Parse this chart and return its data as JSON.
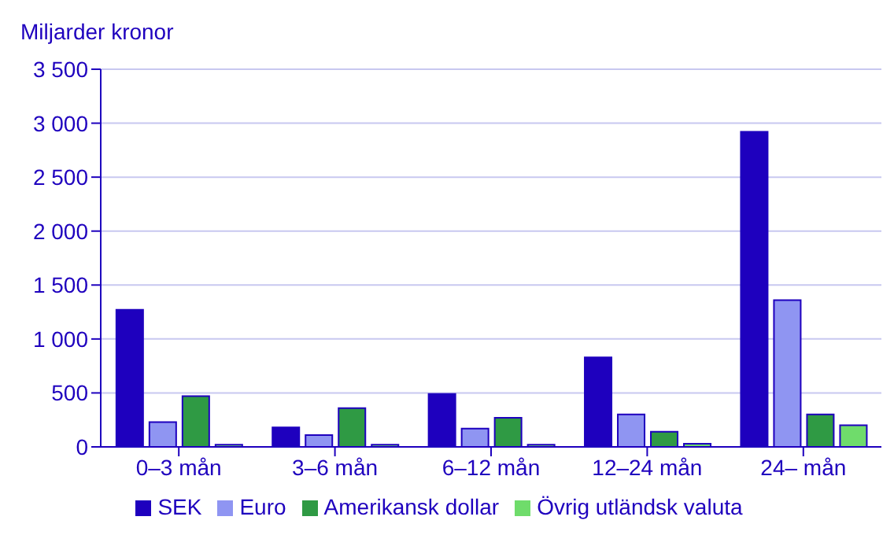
{
  "chart_data": {
    "type": "bar",
    "ylabel": "Miljarder kronor",
    "categories": [
      "0–3 mån",
      "3–6 mån",
      "6–12 mån",
      "12–24 mån",
      "24– mån"
    ],
    "series": [
      {
        "name": "SEK",
        "color": "#1e00be",
        "values": [
          1270,
          180,
          490,
          830,
          2920
        ]
      },
      {
        "name": "Euro",
        "color": "#8f95f2",
        "values": [
          230,
          110,
          170,
          300,
          1360
        ]
      },
      {
        "name": "Amerikansk dollar",
        "color": "#2f9a44",
        "values": [
          470,
          360,
          270,
          140,
          300
        ]
      },
      {
        "name": "Övrig utländsk valuta",
        "color": "#6fdc6b",
        "values": [
          20,
          20,
          20,
          30,
          200
        ]
      }
    ],
    "ylim": [
      0,
      3500
    ],
    "yticks": [
      {
        "value": 0,
        "label": "0"
      },
      {
        "value": 500,
        "label": "500"
      },
      {
        "value": 1000,
        "label": "1 000"
      },
      {
        "value": 1500,
        "label": "1 500"
      },
      {
        "value": 2000,
        "label": "2 000"
      },
      {
        "value": 2500,
        "label": "2 500"
      },
      {
        "value": 3000,
        "label": "3 000"
      },
      {
        "value": 3500,
        "label": "3 500"
      }
    ],
    "grid": "y",
    "legend": "bottom"
  }
}
